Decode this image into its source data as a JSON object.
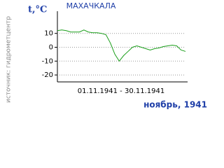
{
  "chart_data": {
    "type": "line",
    "title": "МАХАЧКАЛА",
    "ylabel": "t,°C",
    "source": "источник: гидрометцентр",
    "xlabel": "01.11.1941 - 30.11.1941",
    "period": "ноябрь, 1941",
    "x": [
      1,
      2,
      3,
      4,
      5,
      6,
      7,
      8,
      9,
      10,
      11,
      12,
      13,
      14,
      15,
      16,
      17,
      18,
      19,
      20,
      21,
      22,
      23,
      24,
      25,
      26,
      27,
      28,
      29,
      30
    ],
    "series": [
      {
        "name": "t",
        "color": "#1a9e1a",
        "values": [
          12,
          12.5,
          12,
          11,
          11,
          11,
          12.5,
          11,
          10.5,
          10.5,
          10,
          9,
          3,
          -5,
          -10,
          -6,
          -3,
          0,
          1,
          0,
          -1,
          -2,
          -1,
          -0.5,
          0.5,
          1,
          1.5,
          1,
          -2,
          -3
        ]
      }
    ],
    "xlim": [
      1,
      30
    ],
    "ylim": [
      -25,
      25
    ],
    "yticks": [
      10,
      0,
      -10,
      -20
    ],
    "grid": true
  }
}
